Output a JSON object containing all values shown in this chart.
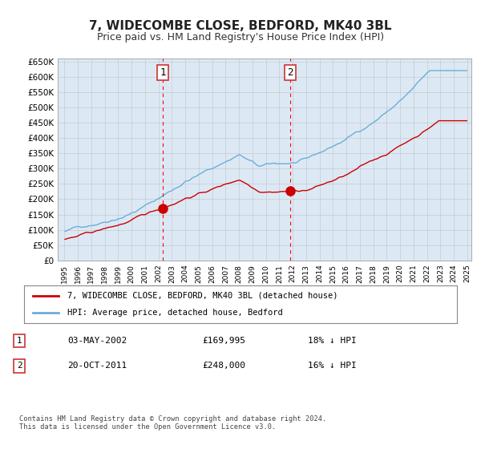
{
  "title": "7, WIDECOMBE CLOSE, BEDFORD, MK40 3BL",
  "subtitle": "Price paid vs. HM Land Registry's House Price Index (HPI)",
  "legend_line1": "7, WIDECOMBE CLOSE, BEDFORD, MK40 3BL (detached house)",
  "legend_line2": "HPI: Average price, detached house, Bedford",
  "annotation1_label": "1",
  "annotation1_date": "03-MAY-2002",
  "annotation1_price": "£169,995",
  "annotation1_hpi": "18% ↓ HPI",
  "annotation1_year": 2002.33,
  "annotation1_value": 169995,
  "annotation2_label": "2",
  "annotation2_date": "20-OCT-2011",
  "annotation2_price": "£248,000",
  "annotation2_hpi": "16% ↓ HPI",
  "annotation2_year": 2011.8,
  "annotation2_value": 248000,
  "hpi_color": "#6baed6",
  "price_color": "#cc0000",
  "background_color": "#ffffff",
  "plot_bg_color": "#dce9f5",
  "grid_color": "#aaaaaa",
  "ylabel_color": "#333333",
  "ylim": [
    0,
    660000
  ],
  "yticks": [
    0,
    50000,
    100000,
    150000,
    200000,
    250000,
    300000,
    350000,
    400000,
    450000,
    500000,
    550000,
    600000,
    650000
  ],
  "footnote": "Contains HM Land Registry data © Crown copyright and database right 2024.\nThis data is licensed under the Open Government Licence v3.0."
}
